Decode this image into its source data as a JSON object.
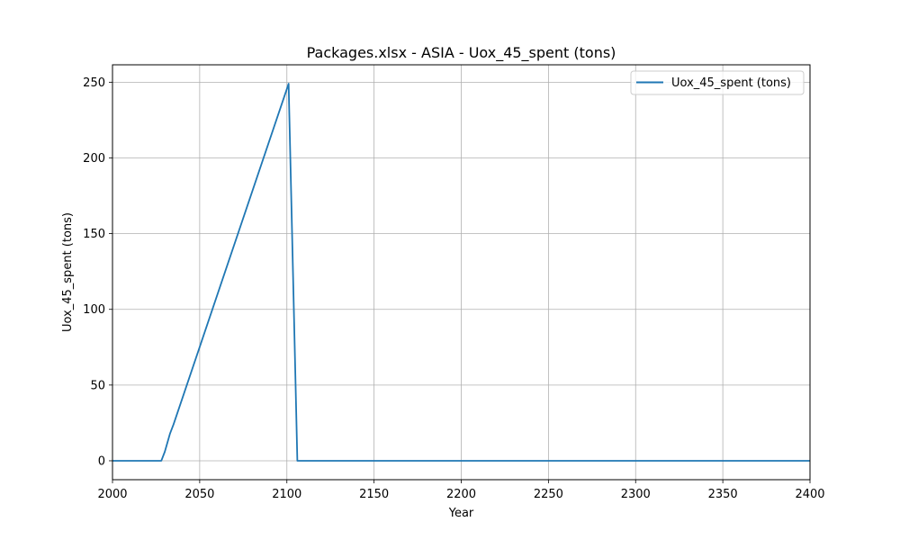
{
  "chart_data": {
    "type": "line",
    "title": "Packages.xlsx - ASIA - Uox_45_spent (tons)",
    "xlabel": "Year",
    "ylabel": "Uox_45_spent (tons)",
    "xlim": [
      2000,
      2400
    ],
    "ylim": [
      -12.5,
      261.5
    ],
    "xticks": [
      2000,
      2050,
      2100,
      2150,
      2200,
      2250,
      2300,
      2350,
      2400
    ],
    "yticks": [
      0,
      50,
      100,
      150,
      200,
      250
    ],
    "grid": true,
    "legend_position": "top-right",
    "series": [
      {
        "name": "Uox_45_spent (tons)",
        "color": "#1f77b4",
        "x": [
          2000,
          2028,
          2030,
          2033,
          2035,
          2101,
          2106,
          2400
        ],
        "y": [
          0,
          0,
          6,
          18,
          24,
          249,
          0,
          0
        ]
      }
    ]
  }
}
